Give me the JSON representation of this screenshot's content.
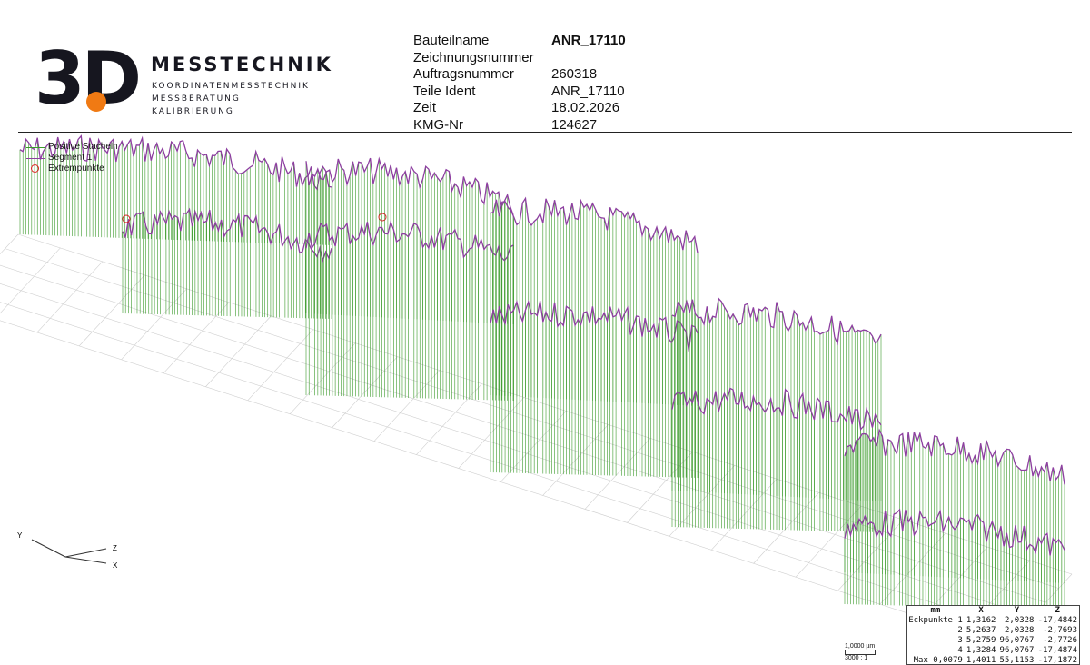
{
  "logo": {
    "mark": "3D",
    "title": "MESSTECHNIK",
    "lines": [
      "KOORDINATENMESSTECHNIK",
      "MESSBERATUNG",
      "KALIBRIERUNG"
    ]
  },
  "header": [
    {
      "label": "Bauteilname",
      "value": "ANR_17110"
    },
    {
      "label": "Zeichnungsnummer",
      "value": ""
    },
    {
      "label": "Auftragsnummer",
      "value": "260318"
    },
    {
      "label": "Teile Ident",
      "value": "ANR_17110"
    },
    {
      "label": "Zeit",
      "value": "18.02.2026"
    },
    {
      "label": "KMG-Nr",
      "value": "124627"
    }
  ],
  "legend": [
    {
      "label": "Positive Stacheln",
      "color": "#3a9a2a"
    },
    {
      "label": "Segment 1",
      "color": "#8d3fa0"
    },
    {
      "label": "Extrempunkte",
      "color": "#d22222"
    }
  ],
  "axes": {
    "y": "Y",
    "z": "Z",
    "x": "X"
  },
  "scale_bar": {
    "length": "1,0000 µm",
    "ratio": "3000 : 1"
  },
  "results": {
    "headers": [
      "mm",
      "X",
      "Y",
      "Z"
    ],
    "rows": [
      [
        "Eckpunkte 1",
        "1,3162",
        "2,0328",
        "-17,4842"
      ],
      [
        "2",
        "5,2637",
        "2,0328",
        "-2,7693"
      ],
      [
        "3",
        "5,2759",
        "96,0767",
        "-2,7726"
      ],
      [
        "4",
        "1,3284",
        "96,0767",
        "-17,4874"
      ],
      [
        "Max 0,0079",
        "1,4011",
        "55,1153",
        "-17,1872"
      ]
    ]
  },
  "chart_data": {
    "type": "line",
    "title": "",
    "series": [
      {
        "name": "Positive Stacheln"
      },
      {
        "name": "Segment 1"
      },
      {
        "name": "Extrempunkte"
      }
    ],
    "corner_points": [
      {
        "point": 1,
        "x": 1.3162,
        "y": 2.0328,
        "z": -17.4842
      },
      {
        "point": 2,
        "x": 5.2637,
        "y": 2.0328,
        "z": -2.7693
      },
      {
        "point": 3,
        "x": 5.2759,
        "y": 96.0767,
        "z": -2.7726
      },
      {
        "point": 4,
        "x": 1.3284,
        "y": 96.0767,
        "z": -17.4874
      }
    ],
    "max": {
      "deviation": 0.0079,
      "x": 1.4011,
      "y": 55.1153,
      "z": -17.1872
    },
    "scale": "3000 : 1",
    "grid": true,
    "legend_position": "top-left"
  }
}
